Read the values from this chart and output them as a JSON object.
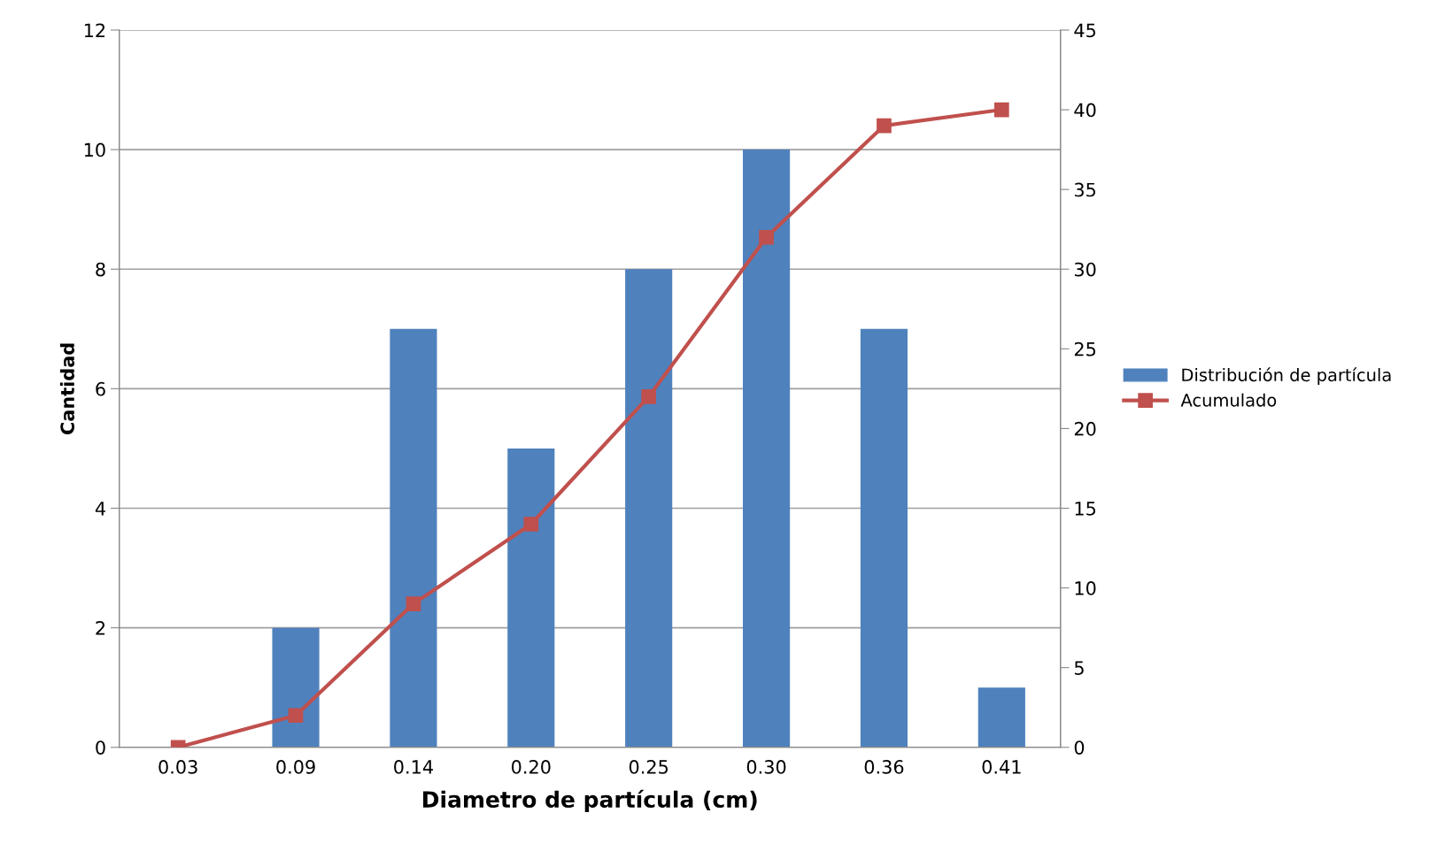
{
  "chart_data": {
    "type": "bar",
    "xlabel": "Diametro de partícula (cm)",
    "ylabel": "Cantidad",
    "categories": [
      "0.03",
      "0.09",
      "0.14",
      "0.20",
      "0.25",
      "0.30",
      "0.36",
      "0.41"
    ],
    "series": [
      {
        "name": "Distribución de partícula",
        "color": "#4f81bd",
        "values": [
          0,
          2,
          7,
          5,
          8,
          10,
          7,
          1
        ]
      },
      {
        "name": "Acumulado",
        "type": "line",
        "axis": "y2",
        "color": "#c0504d",
        "marker": "square",
        "values": [
          0,
          2,
          9,
          14,
          22,
          32,
          39,
          40
        ]
      }
    ],
    "ylim": [
      0,
      12
    ],
    "yticks": [
      0,
      2,
      4,
      6,
      8,
      10,
      12
    ],
    "y2lim": [
      0,
      45
    ],
    "y2ticks": [
      0,
      5,
      10,
      15,
      20,
      25,
      30,
      35,
      40,
      45
    ],
    "grid": "y",
    "legend": "right"
  }
}
